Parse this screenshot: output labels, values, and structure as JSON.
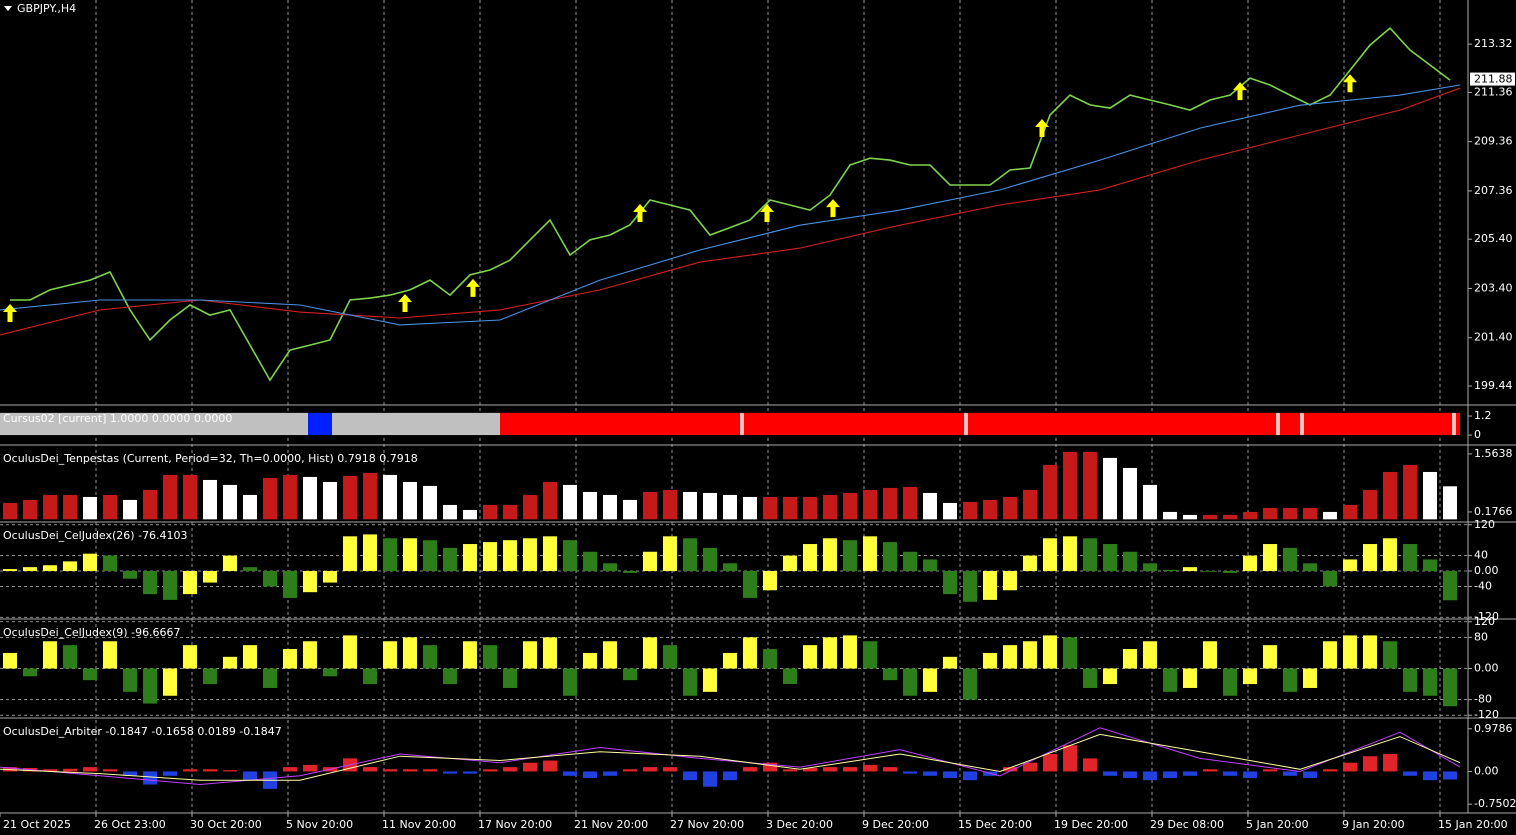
{
  "chart_data": [
    {
      "type": "line",
      "title": "GBPJPY.,H4",
      "xlim": [
        0,
        73
      ],
      "xticks": [
        {
          "value": 0,
          "label": "21 Oct 2025"
        },
        {
          "value": 4.8,
          "label": "26 Oct 23:00"
        },
        {
          "value": 9.6,
          "label": "30 Oct 20:00"
        },
        {
          "value": 14.4,
          "label": "5 Nov 20:00"
        },
        {
          "value": 19.2,
          "label": "11 Nov 20:00"
        },
        {
          "value": 24,
          "label": "17 Nov 20:00"
        },
        {
          "value": 28.8,
          "label": "21 Nov 20:00"
        },
        {
          "value": 33.6,
          "label": "27 Nov 20:00"
        },
        {
          "value": 38.4,
          "label": "3 Dec 20:00"
        },
        {
          "value": 43.2,
          "label": "9 Dec 20:00"
        },
        {
          "value": 48,
          "label": "15 Dec 20:00"
        },
        {
          "value": 52.8,
          "label": "19 Dec 20:00"
        },
        {
          "value": 57.6,
          "label": "29 Dec 08:00"
        },
        {
          "value": 62.4,
          "label": "5 Jan 20:00"
        },
        {
          "value": 67.2,
          "label": "9 Jan 20:00"
        },
        {
          "value": 72,
          "label": "15 Jan 20:00"
        }
      ],
      "ylim": [
        198.71,
        215.11
      ],
      "yticks": [
        213.32,
        211.36,
        209.36,
        207.36,
        {
          "value": 205.4,
          "label": "205.40"
        },
        {
          "value": 203.4,
          "label": "203.40"
        },
        {
          "value": 201.4,
          "label": "201.40"
        },
        199.44
      ],
      "last_price": 211.88,
      "series": [
        {
          "color": "#7fd44c",
          "values": [
            202.93,
            202.93,
            203.34,
            203.54,
            203.74,
            204.07,
            202.53,
            201.31,
            202.12,
            202.73,
            202.32,
            202.53,
            201.1,
            199.68,
            200.9,
            201.1,
            201.31,
            202.93,
            203.01,
            203.13,
            203.34,
            203.74,
            203.13,
            203.95,
            204.15,
            204.55,
            205.37,
            206.18,
            204.76,
            205.37,
            205.57,
            205.98,
            206.99,
            206.79,
            206.58,
            205.57,
            205.87,
            206.18,
            206.99,
            206.79,
            206.58,
            207.19,
            208.41,
            208.69,
            208.61,
            208.41,
            208.41,
            207.6,
            207.6,
            207.6,
            208.21,
            208.29,
            210.44,
            211.25,
            210.85,
            210.72,
            211.25,
            211.05,
            210.85,
            210.64,
            211.05,
            211.25,
            211.94,
            211.66,
            211.25,
            210.85,
            211.25,
            212.26,
            213.28,
            213.97,
            213.08,
            212.47,
            211.86
          ]
        },
        {
          "color": "#d42020",
          "x": [
            0,
            5,
            10,
            15,
            20,
            25,
            30,
            35,
            40,
            45,
            50,
            55,
            60,
            65,
            70,
            73
          ],
          "values": [
            201.51,
            202.53,
            202.93,
            202.44,
            202.2,
            202.53,
            203.34,
            204.47,
            205.04,
            205.97,
            206.79,
            207.4,
            208.61,
            209.63,
            210.64,
            211.53
          ]
        },
        {
          "color": "#4a90e2",
          "x": [
            0,
            5,
            10,
            15,
            20,
            25,
            30,
            35,
            40,
            45,
            50,
            55,
            60,
            65,
            70,
            73
          ],
          "values": [
            202.53,
            202.93,
            202.93,
            202.73,
            201.92,
            202.12,
            203.74,
            204.96,
            205.97,
            206.58,
            207.4,
            208.61,
            209.91,
            210.84,
            211.25,
            211.66
          ]
        }
      ],
      "arrows_x": [
        0.5,
        20.25,
        23.65,
        32,
        38.35,
        41.65,
        52.1,
        62,
        67.5
      ],
      "arrow_color": "#ffff00"
    },
    {
      "type": "histogram",
      "title": "Cursus02 [current] 1.0000 0.0000 0.0000",
      "ylim": [
        -0.5,
        1.77
      ],
      "yticks": [
        1.2,
        0
      ],
      "bins": [
        0,
        15.4,
        16.6,
        25,
        37,
        37.2,
        48.2,
        48.4,
        63.8,
        64,
        65,
        65.2,
        72.6,
        72.8,
        73
      ],
      "values": [
        1.4,
        1.4,
        1.4,
        1.4,
        1.4,
        1.4,
        1.4,
        1.4,
        1.4,
        1.4,
        1.4,
        1.4,
        1.4,
        1.4
      ],
      "colors": [
        "#c0c0c0",
        "#0020ff",
        "#c0c0c0",
        "#ff0000",
        "#ffc0c0",
        "#ff0000",
        "#ffc0c0",
        "#ff0000",
        "#ffc0c0",
        "#ff0000",
        "#ffc0c0",
        "#ff0000",
        "#ffc0c0",
        "#ff0000"
      ]
    },
    {
      "type": "bar",
      "title": "OculusDei_Tenpestas (Current, Period=32, Th=0.0000, Hist) 0.7918 0.7918",
      "ylim": [
        -0.04,
        1.73
      ],
      "yticks": [
        1.5638,
        0.1766
      ],
      "color_rule": "rising",
      "up_color": "#c41a1a",
      "down_color": "#ffffff",
      "values": [
        0.392,
        0.464,
        0.583,
        0.583,
        0.535,
        0.583,
        0.464,
        0.703,
        1.062,
        1.062,
        0.942,
        0.823,
        0.583,
        0.99,
        1.062,
        1.014,
        0.894,
        1.038,
        1.11,
        1.062,
        0.894,
        0.799,
        0.344,
        0.224,
        0.344,
        0.344,
        0.583,
        0.894,
        0.823,
        0.655,
        0.583,
        0.464,
        0.655,
        0.703,
        0.655,
        0.631,
        0.583,
        0.535,
        0.535,
        0.535,
        0.535,
        0.583,
        0.631,
        0.703,
        0.751,
        0.775,
        0.631,
        0.392,
        0.416,
        0.464,
        0.535,
        0.703,
        1.301,
        1.612,
        1.612,
        1.469,
        1.229,
        0.823,
        0.177,
        0.105,
        0.105,
        0.105,
        0.177,
        0.272,
        0.272,
        0.272,
        0.177,
        0.344,
        0.703,
        1.133,
        1.301,
        1.133,
        0.79
      ]
    },
    {
      "type": "bar",
      "title": "OculusDei_CelJudex(26) -76.4103",
      "ylim": [
        -122,
        122
      ],
      "yticks": [
        120,
        40,
        {
          "value": 0,
          "label": "0.00"
        },
        -40,
        -120
      ],
      "grid": true,
      "color_rule": "rising",
      "up_color": "#ffff3c",
      "down_color": "#2d7d1a",
      "values": [
        5,
        10,
        15,
        25,
        45,
        40,
        -20,
        -60,
        -75,
        -60,
        -30,
        40,
        10,
        -40,
        -70,
        -55,
        -30,
        90,
        95,
        85,
        85,
        80,
        60,
        70,
        75,
        80,
        85,
        90,
        80,
        50,
        20,
        -5,
        50,
        90,
        85,
        60,
        20,
        -70,
        -50,
        40,
        70,
        85,
        80,
        90,
        75,
        50,
        30,
        -60,
        -80,
        -75,
        -50,
        40,
        85,
        90,
        85,
        70,
        50,
        20,
        3,
        10,
        -2,
        -5,
        40,
        70,
        60,
        20,
        -40,
        30,
        70,
        85,
        70,
        30,
        -76
      ]
    },
    {
      "type": "bar",
      "title": "OculusDei_CelJudex(9) -96.6667",
      "ylim": [
        -122,
        122
      ],
      "yticks": [
        120,
        80,
        {
          "value": 0,
          "label": "0.00"
        },
        -80,
        -120
      ],
      "grid": true,
      "color_rule": "rising",
      "up_color": "#ffff3c",
      "down_color": "#2d7d1a",
      "values": [
        40,
        -20,
        70,
        60,
        -30,
        70,
        -60,
        -90,
        -70,
        60,
        -40,
        30,
        60,
        -50,
        50,
        70,
        -20,
        85,
        -40,
        70,
        80,
        60,
        -40,
        70,
        60,
        -50,
        70,
        80,
        -70,
        40,
        70,
        -30,
        80,
        60,
        -70,
        -60,
        40,
        80,
        50,
        -40,
        60,
        80,
        85,
        70,
        -30,
        -70,
        -60,
        30,
        -80,
        40,
        60,
        70,
        85,
        80,
        -50,
        -40,
        50,
        70,
        -60,
        -50,
        70,
        -70,
        -40,
        60,
        -60,
        -50,
        70,
        85,
        85,
        70,
        -60,
        -70,
        -97
      ]
    },
    {
      "type": "bar",
      "title": "OculusDei_Arbiter -0.1847 -0.1658 0.0189 -0.1847",
      "ylim": [
        -0.93,
        1.18
      ],
      "yticks": [
        0.9786,
        {
          "value": 0,
          "label": "0.00"
        },
        -0.7502
      ],
      "color_rule": "sign",
      "up_color": "#e0242a",
      "down_color": "#2040e0",
      "values": [
        0.1,
        0.08,
        0.05,
        0.06,
        0.1,
        0.05,
        -0.1,
        -0.3,
        -0.1,
        0.05,
        0.05,
        0.03,
        -0.2,
        -0.4,
        0.1,
        0.15,
        0.1,
        0.3,
        0.1,
        0.05,
        0.05,
        0.05,
        -0.05,
        -0.05,
        0.05,
        0.1,
        0.2,
        0.25,
        -0.1,
        -0.15,
        -0.1,
        0.05,
        0.1,
        0.1,
        -0.2,
        -0.35,
        -0.2,
        0.1,
        0.2,
        0.05,
        0.08,
        0.1,
        0.1,
        0.15,
        0.1,
        -0.05,
        -0.1,
        -0.15,
        -0.2,
        -0.1,
        0.1,
        0.2,
        0.4,
        0.6,
        0.3,
        -0.1,
        -0.15,
        -0.2,
        -0.15,
        -0.1,
        0.05,
        -0.1,
        -0.15,
        0.05,
        -0.1,
        -0.15,
        0.05,
        0.2,
        0.35,
        0.4,
        -0.1,
        -0.2,
        -0.1847
      ],
      "series": [
        {
          "color": "#c040ff",
          "x": [
            0,
            5,
            10,
            15,
            20,
            25,
            30,
            35,
            40,
            45,
            50,
            55,
            60,
            65,
            70,
            73
          ],
          "values": [
            0.1,
            -0.1,
            -0.3,
            -0.1,
            0.4,
            0.2,
            0.55,
            0.3,
            0.1,
            0.5,
            -0.1,
            1.0,
            0.3,
            0.0,
            0.9,
            0.1
          ]
        },
        {
          "color": "#ffffa0",
          "x": [
            0,
            5,
            10,
            15,
            20,
            25,
            30,
            35,
            40,
            45,
            50,
            55,
            60,
            65,
            70,
            73
          ],
          "values": [
            0.05,
            -0.05,
            -0.2,
            -0.2,
            0.35,
            0.25,
            0.45,
            0.35,
            0.05,
            0.4,
            0.0,
            0.85,
            0.45,
            0.05,
            0.8,
            0.2
          ]
        }
      ]
    }
  ]
}
